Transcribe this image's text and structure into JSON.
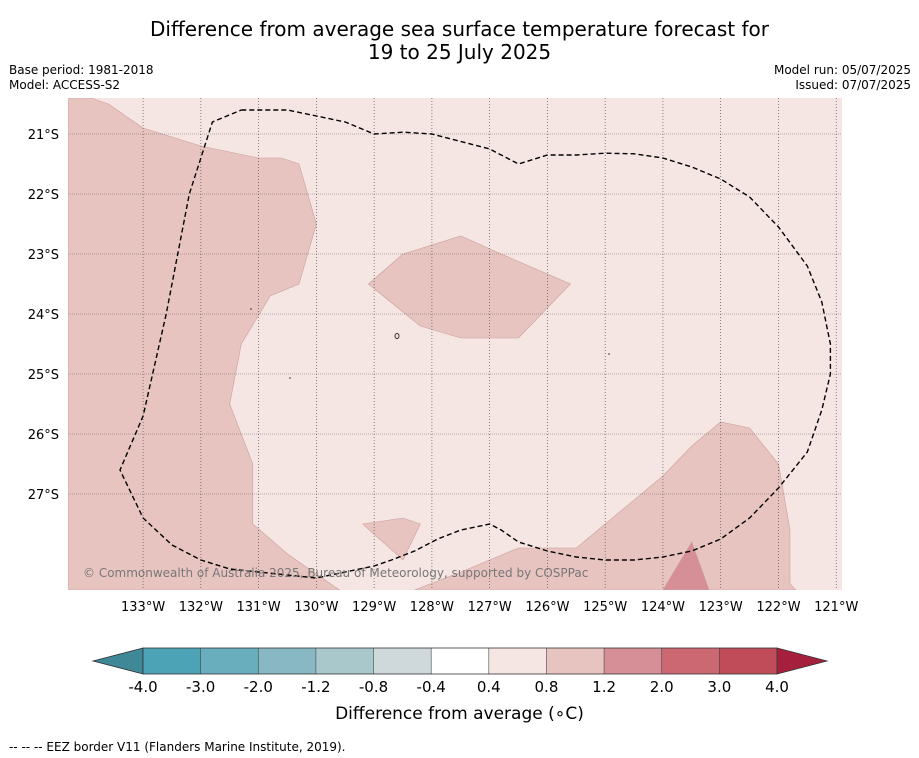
{
  "header": {
    "title_line1": "Difference from average sea surface temperature forecast for",
    "title_line2": "19 to 25 July 2025",
    "base_period": "Base period: 1981-2018",
    "model": "Model: ACCESS-S2",
    "model_run": "Model run: 05/07/2025",
    "issued": "Issued: 07/07/2025"
  },
  "map": {
    "lon_range": [
      -134.3,
      -120.9
    ],
    "lat_range": [
      -28.6,
      -20.4
    ],
    "lat_ticks": [
      {
        "value": -21,
        "label": "21°S"
      },
      {
        "value": -22,
        "label": "22°S"
      },
      {
        "value": -23,
        "label": "23°S"
      },
      {
        "value": -24,
        "label": "24°S"
      },
      {
        "value": -25,
        "label": "25°S"
      },
      {
        "value": -26,
        "label": "26°S"
      },
      {
        "value": -27,
        "label": "27°S"
      }
    ],
    "lon_ticks": [
      {
        "value": -133,
        "label": "133°W"
      },
      {
        "value": -132,
        "label": "132°W"
      },
      {
        "value": -131,
        "label": "131°W"
      },
      {
        "value": -130,
        "label": "130°W"
      },
      {
        "value": -129,
        "label": "129°W"
      },
      {
        "value": -128,
        "label": "128°W"
      },
      {
        "value": -127,
        "label": "127°W"
      },
      {
        "value": -126,
        "label": "126°W"
      },
      {
        "value": -125,
        "label": "125°W"
      },
      {
        "value": -124,
        "label": "124°W"
      },
      {
        "value": -123,
        "label": "123°W"
      },
      {
        "value": -122,
        "label": "122°W"
      },
      {
        "value": -121,
        "label": "121°W"
      }
    ],
    "copyright": "© Commonwealth of Australia 2025, Bureau of Meteorology, supported by COSPPac",
    "background_band": "0.4 to 0.8",
    "regions": [
      {
        "band": "0.8 to 1.2",
        "color": "#e8c4c1",
        "points": [
          [
            -134.3,
            -20.4
          ],
          [
            -133.9,
            -20.4
          ],
          [
            -133.6,
            -20.5
          ],
          [
            -133.0,
            -20.9
          ],
          [
            -132.0,
            -21.2
          ],
          [
            -131.0,
            -21.4
          ],
          [
            -130.6,
            -21.4
          ],
          [
            -130.3,
            -21.5
          ],
          [
            -130.0,
            -22.5
          ],
          [
            -130.3,
            -23.5
          ],
          [
            -130.8,
            -23.7
          ],
          [
            -131.3,
            -24.5
          ],
          [
            -131.5,
            -25.5
          ],
          [
            -131.1,
            -26.5
          ],
          [
            -131.1,
            -27.5
          ],
          [
            -130.5,
            -28.0
          ],
          [
            -129.6,
            -28.6
          ],
          [
            -134.3,
            -28.6
          ]
        ]
      },
      {
        "band": "0.8 to 1.2",
        "color": "#e8c4c1",
        "points": [
          [
            -129.1,
            -23.5
          ],
          [
            -128.5,
            -23.0
          ],
          [
            -127.5,
            -22.7
          ],
          [
            -126.8,
            -23.0
          ],
          [
            -125.6,
            -23.5
          ],
          [
            -126.5,
            -24.4
          ],
          [
            -127.5,
            -24.4
          ],
          [
            -128.2,
            -24.2
          ]
        ]
      },
      {
        "band": "0.8 to 1.2",
        "color": "#e8c4c1",
        "points": [
          [
            -129.2,
            -27.5
          ],
          [
            -128.5,
            -27.4
          ],
          [
            -128.2,
            -27.5
          ],
          [
            -128.5,
            -28.1
          ]
        ]
      },
      {
        "band": "0.8 to 1.2",
        "color": "#e8c4c1",
        "points": [
          [
            -128.3,
            -28.6
          ],
          [
            -127.5,
            -28.3
          ],
          [
            -126.5,
            -27.9
          ],
          [
            -125.5,
            -27.9
          ],
          [
            -125.0,
            -27.5
          ],
          [
            -124.0,
            -26.7
          ],
          [
            -123.5,
            -26.2
          ],
          [
            -123.0,
            -25.8
          ],
          [
            -122.5,
            -25.9
          ],
          [
            -122.0,
            -26.5
          ],
          [
            -121.8,
            -27.6
          ],
          [
            -121.8,
            -28.5
          ],
          [
            -121.7,
            -28.6
          ]
        ]
      },
      {
        "band": "1.2 to 2.0",
        "color": "#d68f96",
        "points": [
          [
            -124.0,
            -28.6
          ],
          [
            -123.5,
            -27.8
          ],
          [
            -123.2,
            -28.6
          ]
        ]
      }
    ],
    "eez_border": [
      [
        -131.3,
        -20.6
      ],
      [
        -130.5,
        -20.6
      ],
      [
        -130.0,
        -20.7
      ],
      [
        -129.5,
        -20.8
      ],
      [
        -129.0,
        -21.0
      ],
      [
        -128.5,
        -20.97
      ],
      [
        -128.0,
        -21.0
      ],
      [
        -127.0,
        -21.25
      ],
      [
        -126.5,
        -21.5
      ],
      [
        -126.0,
        -21.35
      ],
      [
        -125.5,
        -21.35
      ],
      [
        -125.0,
        -21.32
      ],
      [
        -124.5,
        -21.33
      ],
      [
        -124.0,
        -21.4
      ],
      [
        -123.5,
        -21.55
      ],
      [
        -123.0,
        -21.75
      ],
      [
        -122.5,
        -22.05
      ],
      [
        -122.0,
        -22.55
      ],
      [
        -121.5,
        -23.2
      ],
      [
        -121.25,
        -23.8
      ],
      [
        -121.1,
        -24.5
      ],
      [
        -121.1,
        -25.0
      ],
      [
        -121.25,
        -25.6
      ],
      [
        -121.5,
        -26.3
      ],
      [
        -122.0,
        -26.9
      ],
      [
        -122.5,
        -27.4
      ],
      [
        -123.0,
        -27.75
      ],
      [
        -123.5,
        -27.95
      ],
      [
        -124.0,
        -28.05
      ],
      [
        -124.5,
        -28.1
      ],
      [
        -125.0,
        -28.1
      ],
      [
        -125.5,
        -28.05
      ],
      [
        -126.0,
        -27.95
      ],
      [
        -126.5,
        -27.8
      ],
      [
        -126.8,
        -27.6
      ],
      [
        -127.0,
        -27.5
      ],
      [
        -127.5,
        -27.6
      ],
      [
        -127.9,
        -27.75
      ],
      [
        -128.3,
        -27.95
      ],
      [
        -128.7,
        -28.1
      ],
      [
        -129.0,
        -28.2
      ],
      [
        -129.5,
        -28.3
      ],
      [
        -130.0,
        -28.4
      ],
      [
        -130.5,
        -28.35
      ],
      [
        -131.0,
        -28.3
      ],
      [
        -131.5,
        -28.25
      ],
      [
        -132.0,
        -28.1
      ],
      [
        -132.5,
        -27.85
      ],
      [
        -133.0,
        -27.4
      ],
      [
        -133.4,
        -26.6
      ],
      [
        -133.0,
        -25.7
      ],
      [
        -132.6,
        -24.0
      ],
      [
        -132.2,
        -22.0
      ],
      [
        -131.8,
        -20.8
      ],
      [
        -131.3,
        -20.6
      ]
    ]
  },
  "colorbar": {
    "label": "Difference from average (∘C)",
    "ticks": [
      "-4.0",
      "-3.0",
      "-2.0",
      "-1.2",
      "-0.8",
      "-0.4",
      "0.4",
      "0.8",
      "1.2",
      "2.0",
      "3.0",
      "4.0"
    ],
    "colors": [
      "#4ba3b5",
      "#69aebd",
      "#88b8c4",
      "#a8c8cc",
      "#cfd8da",
      "#ffffff",
      "#f5e6e4",
      "#e8c4c1",
      "#d68f96",
      "#cc6872",
      "#c04c5a"
    ],
    "under_color": "#3e8898",
    "over_color": "#a61f3c"
  },
  "footnote": "--  --  -- EEZ border V11 (Flanders Marine Institute, 2019)."
}
